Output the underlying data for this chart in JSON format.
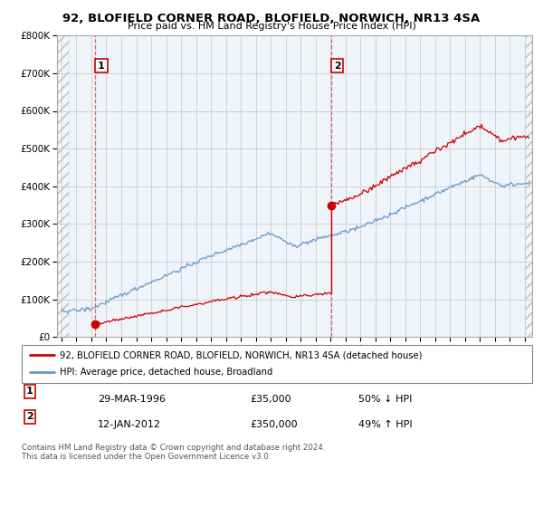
{
  "title": "92, BLOFIELD CORNER ROAD, BLOFIELD, NORWICH, NR13 4SA",
  "subtitle": "Price paid vs. HM Land Registry's House Price Index (HPI)",
  "legend_line1": "92, BLOFIELD CORNER ROAD, BLOFIELD, NORWICH, NR13 4SA (detached house)",
  "legend_line2": "HPI: Average price, detached house, Broadland",
  "point1_date": "29-MAR-1996",
  "point1_price": "£35,000",
  "point1_hpi": "50% ↓ HPI",
  "point1_year": 1996.23,
  "point1_value": 35000,
  "point2_date": "12-JAN-2012",
  "point2_price": "£350,000",
  "point2_hpi": "49% ↑ HPI",
  "point2_year": 2012.03,
  "point2_value": 350000,
  "ylim": [
    0,
    800000
  ],
  "xlim_start": 1993.7,
  "xlim_end": 2025.5,
  "line_color_red": "#CC0000",
  "line_color_blue": "#6699CC",
  "footnote": "Contains HM Land Registry data © Crown copyright and database right 2024.\nThis data is licensed under the Open Government Licence v3.0."
}
